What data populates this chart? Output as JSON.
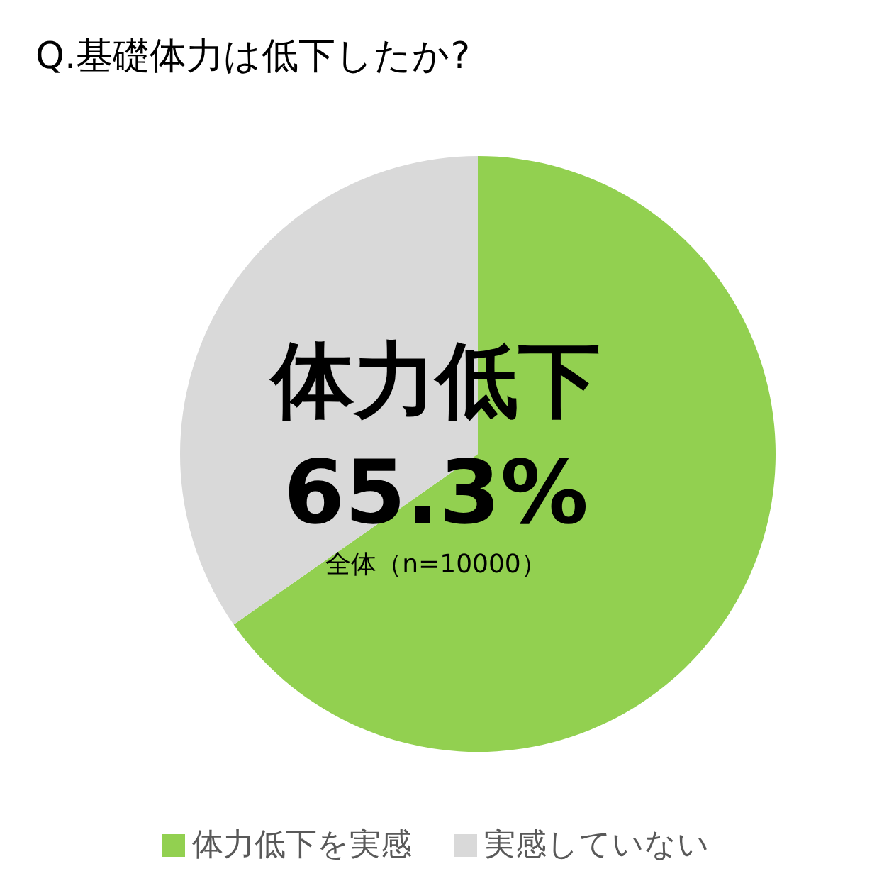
{
  "chart_data": {
    "type": "pie",
    "title": "Q.基礎体力は低下したか?",
    "categories": [
      "体力低下を実感",
      "実感していない"
    ],
    "values": [
      65.3,
      34.7
    ],
    "colors": [
      "#92d050",
      "#d9d9d9"
    ],
    "annotations": [
      "体力低下",
      "65.3%",
      "全体（n=10000）"
    ],
    "legend": "bottom"
  }
}
